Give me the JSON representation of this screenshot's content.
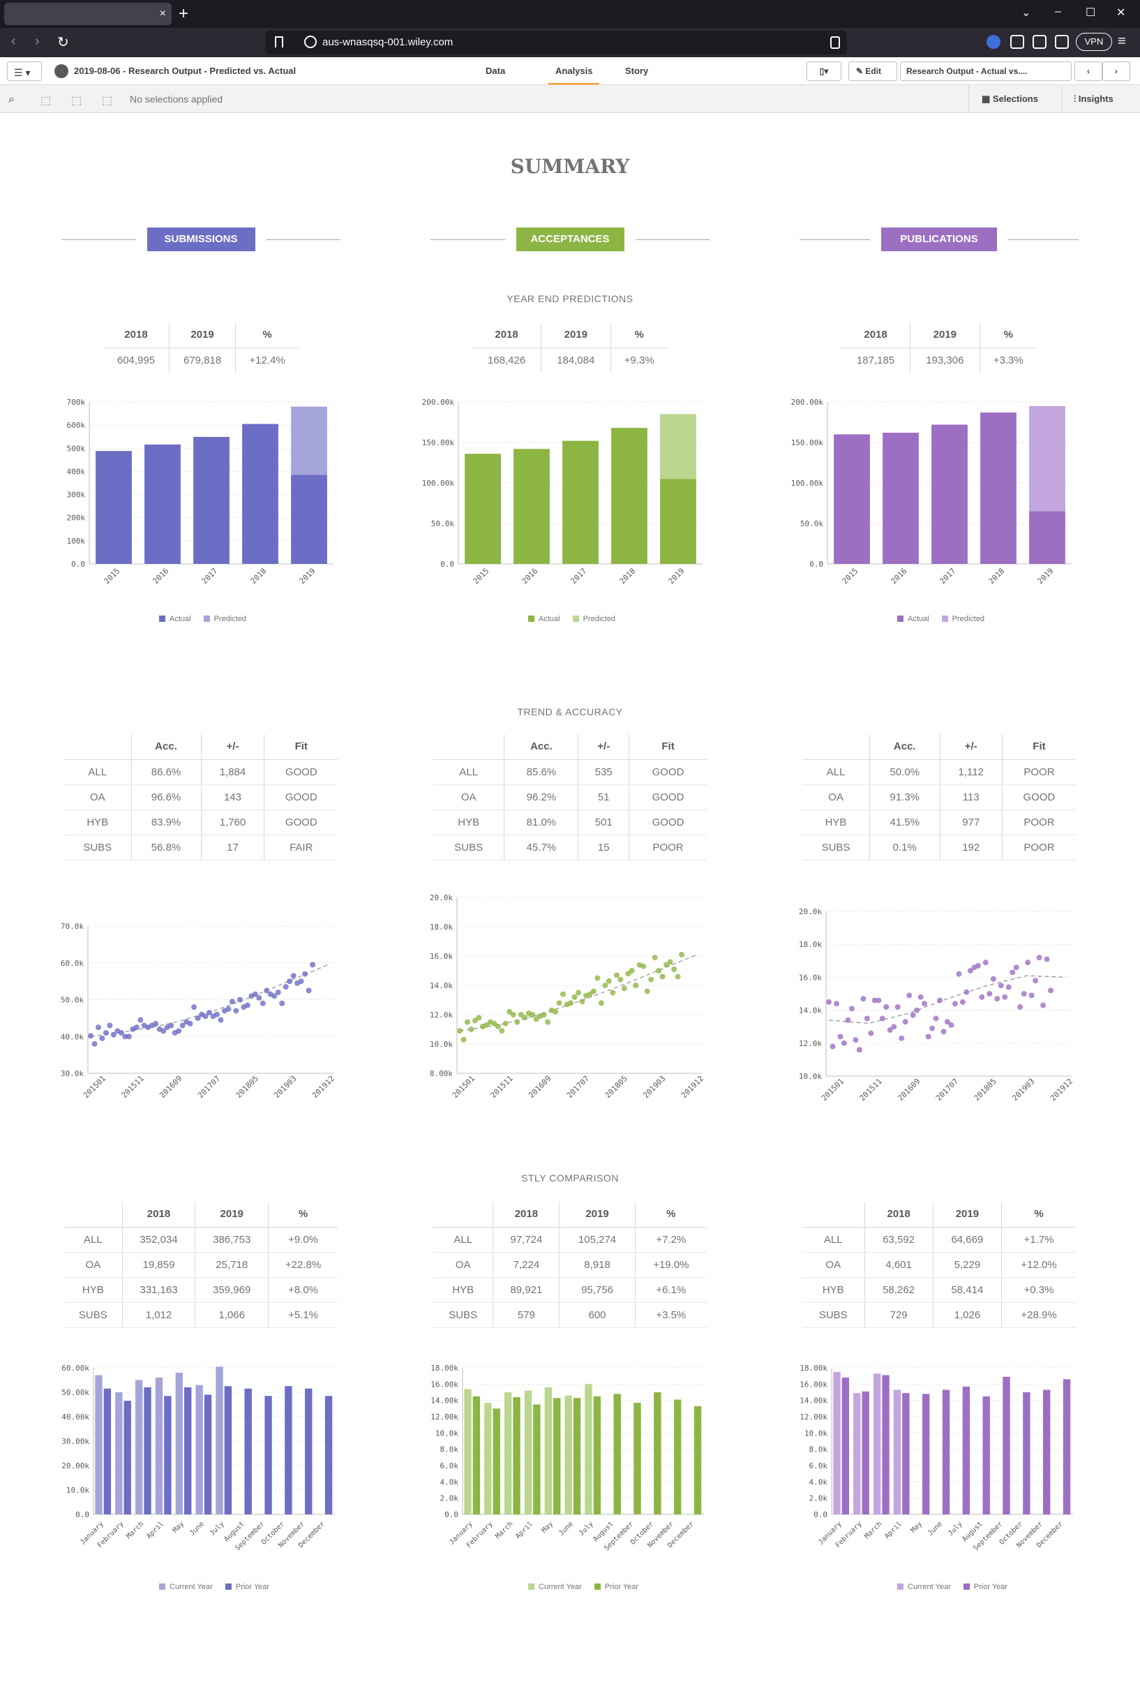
{
  "browser": {
    "tab_close_icon": "×",
    "new_tab_icon": "+",
    "url": "aus-wnasqsq-001.wiley.com",
    "vpn_label": "VPN",
    "win_min": "–",
    "win_max": "☐",
    "win_close": "✕",
    "win_chevron": "⌄"
  },
  "toolbar": {
    "app_title": "2019-08-06 - Research Output - Predicted vs. Actual",
    "tabs": [
      "Data",
      "Analysis",
      "Story"
    ],
    "active_tab": "Analysis",
    "edit_label": "Edit",
    "sheet_selector": "Research Output - Actual vs....",
    "bookmark_icon": "bookmark-icon"
  },
  "selections": {
    "empty_text": "No selections applied",
    "selections_label": "Selections",
    "insights_label": "Insights"
  },
  "sheet": {
    "title": "SUMMARY",
    "columns": [
      {
        "name": "SUBMISSIONS",
        "color": "#6c6dc4",
        "light": "#a5a5dc"
      },
      {
        "name": "ACCEPTANCES",
        "color": "#8db543",
        "light": "#bad68f"
      },
      {
        "name": "PUBLICATIONS",
        "color": "#9c6fc3",
        "light": "#c4a6de"
      }
    ],
    "section_predictions": "YEAR END PREDICTIONS",
    "section_trend": "TREND & ACCURACY",
    "section_stly": "STLY COMPARISON",
    "pred_headers": [
      "2018",
      "2019",
      "%"
    ],
    "pred_values": [
      [
        "604,995",
        "679,818",
        "+12.4%"
      ],
      [
        "168,426",
        "184,084",
        "+9.3%"
      ],
      [
        "187,185",
        "193,306",
        "+3.3%"
      ]
    ],
    "trend_headers": [
      "",
      "Acc.",
      "+/-",
      "Fit"
    ],
    "trend_rows": [
      [
        [
          "ALL",
          "86.6%",
          "1,884",
          "GOOD"
        ],
        [
          "OA",
          "96.6%",
          "143",
          "GOOD"
        ],
        [
          "HYB",
          "83.9%",
          "1,760",
          "GOOD"
        ],
        [
          "SUBS",
          "56.8%",
          "17",
          "FAIR"
        ]
      ],
      [
        [
          "ALL",
          "85.6%",
          "535",
          "GOOD"
        ],
        [
          "OA",
          "96.2%",
          "51",
          "GOOD"
        ],
        [
          "HYB",
          "81.0%",
          "501",
          "GOOD"
        ],
        [
          "SUBS",
          "45.7%",
          "15",
          "POOR"
        ]
      ],
      [
        [
          "ALL",
          "50.0%",
          "1,112",
          "POOR"
        ],
        [
          "OA",
          "91.3%",
          "113",
          "GOOD"
        ],
        [
          "HYB",
          "41.5%",
          "977",
          "POOR"
        ],
        [
          "SUBS",
          "0.1%",
          "192",
          "POOR"
        ]
      ]
    ],
    "stly_headers": [
      "",
      "2018",
      "2019",
      "%"
    ],
    "stly_rows": [
      [
        [
          "ALL",
          "352,034",
          "386,753",
          "+9.0%"
        ],
        [
          "OA",
          "19,859",
          "25,718",
          "+22.8%"
        ],
        [
          "HYB",
          "331,163",
          "359,969",
          "+8.0%"
        ],
        [
          "SUBS",
          "1,012",
          "1,066",
          "+5.1%"
        ]
      ],
      [
        [
          "ALL",
          "97,724",
          "105,274",
          "+7.2%"
        ],
        [
          "OA",
          "7,224",
          "8,918",
          "+19.0%"
        ],
        [
          "HYB",
          "89,921",
          "95,756",
          "+6.1%"
        ],
        [
          "SUBS",
          "579",
          "600",
          "+3.5%"
        ]
      ],
      [
        [
          "ALL",
          "63,592",
          "64,669",
          "+1.7%"
        ],
        [
          "OA",
          "4,601",
          "5,229",
          "+12.0%"
        ],
        [
          "HYB",
          "58,262",
          "58,414",
          "+0.3%"
        ],
        [
          "SUBS",
          "729",
          "1,026",
          "+28.9%"
        ]
      ]
    ]
  },
  "chart_data": [
    {
      "type": "bar",
      "categories": [
        "2015",
        "2016",
        "2017",
        "2018",
        "2019"
      ],
      "series": [
        {
          "name": "Actual",
          "values": [
            488000,
            516000,
            549000,
            605000,
            385000
          ]
        },
        {
          "name": "Predicted",
          "values": [
            0,
            0,
            0,
            0,
            295000
          ]
        }
      ],
      "yticks": [
        "0.0",
        "100k",
        "200k",
        "300k",
        "400k",
        "500k",
        "600k",
        "700k"
      ],
      "ylim": [
        0,
        700000
      ]
    },
    {
      "type": "bar",
      "categories": [
        "2015",
        "2016",
        "2017",
        "2018",
        "2019"
      ],
      "series": [
        {
          "name": "Actual",
          "values": [
            136000,
            142000,
            152000,
            168000,
            105000
          ]
        },
        {
          "name": "Predicted",
          "values": [
            0,
            0,
            0,
            0,
            80000
          ]
        }
      ],
      "yticks": [
        "0.0",
        "50.0k",
        "100.00k",
        "150.00k",
        "200.00k"
      ],
      "ylim": [
        0,
        200000
      ]
    },
    {
      "type": "bar",
      "categories": [
        "2015",
        "2016",
        "2017",
        "2018",
        "2019"
      ],
      "series": [
        {
          "name": "Actual",
          "values": [
            160000,
            162000,
            172000,
            187000,
            65000
          ]
        },
        {
          "name": "Predicted",
          "values": [
            0,
            0,
            0,
            0,
            130000
          ]
        }
      ],
      "yticks": [
        "0.0",
        "50.0k",
        "100.00k",
        "150.00k",
        "200.00k"
      ],
      "ylim": [
        0,
        200000
      ]
    },
    {
      "type": "scatter",
      "xticks": [
        "201501",
        "201511",
        "201609",
        "201707",
        "201805",
        "201903",
        "201912"
      ],
      "yticks": [
        "30.0k",
        "40.0k",
        "50.0k",
        "60.0k",
        "70.0k"
      ],
      "ylim": [
        30000,
        70000
      ],
      "points": [
        40200,
        38000,
        42500,
        39500,
        41000,
        43000,
        40500,
        41500,
        41000,
        40000,
        40000,
        42000,
        42500,
        44500,
        43000,
        42500,
        43000,
        43500,
        42000,
        41500,
        42500,
        43000,
        41000,
        41500,
        43000,
        44000,
        43500,
        48000,
        45000,
        46000,
        45500,
        46500,
        45500,
        46000,
        44500,
        47000,
        47500,
        49500,
        47000,
        50000,
        48000,
        48500,
        51000,
        51500,
        50500,
        49000,
        52500,
        51500,
        51000,
        52000,
        49000,
        53500,
        55000,
        56500,
        54500,
        55000,
        57000,
        52500,
        59500
      ],
      "trend": [
        40000,
        41500,
        43500,
        46500,
        50500,
        55000,
        59500
      ]
    },
    {
      "type": "scatter",
      "xticks": [
        "201501",
        "201511",
        "201609",
        "201707",
        "201805",
        "201903",
        "201912"
      ],
      "yticks": [
        "8.00k",
        "10.0k",
        "12.0k",
        "14.0k",
        "16.0k",
        "18.0k",
        "20.0k"
      ],
      "ylim": [
        8000,
        20000
      ],
      "points": [
        10900,
        10300,
        11500,
        11000,
        11600,
        11800,
        11200,
        11300,
        11500,
        11400,
        11200,
        10900,
        11400,
        12200,
        12000,
        11500,
        12000,
        11800,
        12100,
        12000,
        11700,
        11900,
        12000,
        11500,
        12300,
        12200,
        12800,
        13400,
        12700,
        12800,
        13200,
        13500,
        12900,
        13300,
        13400,
        13600,
        14500,
        12800,
        14000,
        14300,
        13500,
        14700,
        14400,
        13800,
        14800,
        15000,
        14000,
        15400,
        15300,
        13600,
        14400,
        15900,
        15000,
        14600,
        15400,
        15600,
        15100,
        14600,
        16100
      ],
      "trend": [
        10900,
        11300,
        12000,
        12900,
        13900,
        15000,
        16100
      ]
    },
    {
      "type": "scatter",
      "xticks": [
        "201501",
        "201511",
        "201609",
        "201707",
        "201805",
        "201903",
        "201912"
      ],
      "yticks": [
        "10.0k",
        "12.0k",
        "14.0k",
        "16.0k",
        "18.0k",
        "20.0k"
      ],
      "ylim": [
        10000,
        20000
      ],
      "points": [
        14500,
        11800,
        14400,
        12400,
        12000,
        13400,
        14100,
        12200,
        11600,
        14700,
        13500,
        12600,
        14600,
        14600,
        13500,
        14200,
        12800,
        13000,
        14200,
        12300,
        13300,
        14900,
        13700,
        14000,
        14800,
        14400,
        12400,
        12900,
        13500,
        14600,
        12700,
        13300,
        13100,
        14400,
        16200,
        14500,
        15100,
        16400,
        16600,
        16700,
        14800,
        16900,
        15000,
        15900,
        14700,
        15500,
        14800,
        15400,
        16300,
        16600,
        14200,
        15000,
        16900,
        14900,
        15800,
        17200,
        14300,
        17100,
        15200
      ],
      "trend": [
        13400,
        13200,
        13800,
        14700,
        15500,
        16100,
        16000
      ]
    },
    {
      "type": "bar",
      "categories": [
        "January",
        "February",
        "March",
        "April",
        "May",
        "June",
        "July",
        "August",
        "September",
        "October",
        "November",
        "December"
      ],
      "series": [
        {
          "name": "Current Year",
          "values": [
            57000,
            50000,
            55000,
            56000,
            58000,
            53000,
            60500,
            null,
            null,
            null,
            null,
            null
          ]
        },
        {
          "name": "Prior Year",
          "values": [
            51500,
            46500,
            52000,
            48500,
            52000,
            49000,
            52500,
            51500,
            48500,
            52500,
            51500,
            48500
          ]
        }
      ],
      "yticks": [
        "0.0",
        "10.0k",
        "20.00k",
        "30.00k",
        "40.00k",
        "50.00k",
        "60.00k"
      ],
      "ylim": [
        0,
        60000
      ]
    },
    {
      "type": "bar",
      "categories": [
        "January",
        "February",
        "March",
        "April",
        "May",
        "June",
        "July",
        "August",
        "September",
        "October",
        "November",
        "December"
      ],
      "series": [
        {
          "name": "Current Year",
          "values": [
            15400,
            13700,
            15000,
            15200,
            15600,
            14600,
            16000,
            null,
            null,
            null,
            null,
            null
          ]
        },
        {
          "name": "Prior Year",
          "values": [
            14500,
            13000,
            14400,
            13500,
            14300,
            14300,
            14500,
            14800,
            13700,
            15000,
            14100,
            13300
          ]
        }
      ],
      "yticks": [
        "0.0",
        "2.0k",
        "4.0k",
        "6.0k",
        "8.0k",
        "10.0k",
        "12.00k",
        "14.00k",
        "16.00k",
        "18.00k"
      ],
      "ylim": [
        0,
        18000
      ]
    },
    {
      "type": "bar",
      "categories": [
        "January",
        "February",
        "March",
        "April",
        "May",
        "June",
        "July",
        "August",
        "September",
        "October",
        "November",
        "December"
      ],
      "series": [
        {
          "name": "Current Year",
          "values": [
            17500,
            14900,
            17300,
            15300,
            null,
            null,
            null,
            null,
            null,
            null,
            null,
            null
          ]
        },
        {
          "name": "Prior Year",
          "values": [
            16800,
            15100,
            17100,
            14900,
            14800,
            15300,
            15700,
            14500,
            16900,
            15000,
            15300,
            16600
          ]
        }
      ],
      "yticks": [
        "0.0",
        "2.0k",
        "4.0k",
        "6.0k",
        "8.0k",
        "10.0k",
        "12.00k",
        "14.00k",
        "16.00k",
        "18.00k"
      ],
      "ylim": [
        0,
        18000
      ]
    }
  ]
}
